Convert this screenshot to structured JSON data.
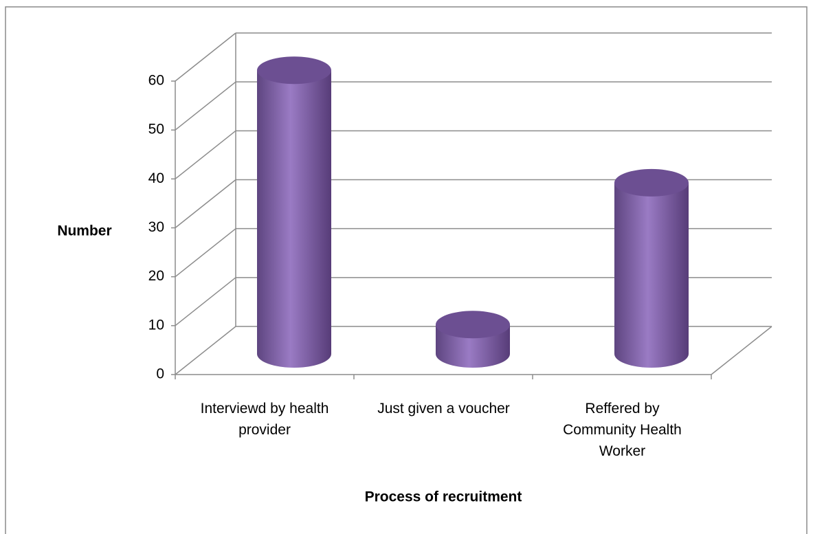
{
  "chart_data": {
    "type": "bar3d",
    "x_label": "Process of recruitment",
    "y_label": "Number",
    "categories": [
      "Interviewd by health provider",
      "Just given a voucher",
      "Reffered by Community Health Worker"
    ],
    "values": [
      58,
      6,
      35
    ],
    "color": "#7e5fa8",
    "ylim": [
      0,
      60
    ],
    "yticks": [
      0,
      10,
      20,
      30,
      40,
      50,
      60
    ],
    "grid": true
  }
}
